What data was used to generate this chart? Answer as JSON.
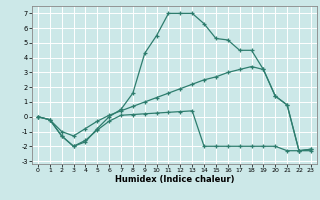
{
  "xlabel": "Humidex (Indice chaleur)",
  "xlim": [
    -0.5,
    23.5
  ],
  "ylim": [
    -3.2,
    7.5
  ],
  "xticks": [
    0,
    1,
    2,
    3,
    4,
    5,
    6,
    7,
    8,
    9,
    10,
    11,
    12,
    13,
    14,
    15,
    16,
    17,
    18,
    19,
    20,
    21,
    22,
    23
  ],
  "yticks": [
    -3,
    -2,
    -1,
    0,
    1,
    2,
    3,
    4,
    5,
    6,
    7
  ],
  "bg_color": "#cce8e8",
  "grid_color": "#ffffff",
  "line_color": "#2e7d6e",
  "line1_x": [
    0,
    1,
    2,
    3,
    4,
    5,
    6,
    7,
    8,
    9,
    10,
    11,
    12,
    13,
    14,
    15,
    16,
    17,
    18,
    19,
    20,
    21,
    22,
    23
  ],
  "line1_y": [
    0,
    -0.2,
    -1.3,
    -2.0,
    -1.7,
    -0.8,
    0.0,
    0.5,
    1.6,
    4.3,
    5.5,
    7.0,
    7.0,
    7.0,
    6.3,
    5.3,
    5.2,
    4.5,
    4.5,
    3.2,
    1.4,
    0.8,
    -2.3,
    -2.2
  ],
  "line2_x": [
    0,
    1,
    2,
    3,
    4,
    5,
    6,
    7,
    8,
    9,
    10,
    11,
    12,
    13,
    14,
    15,
    16,
    17,
    18,
    19,
    20,
    21,
    22,
    23
  ],
  "line2_y": [
    0,
    -0.2,
    -1.3,
    -2.0,
    -1.6,
    -0.9,
    -0.3,
    0.1,
    0.15,
    0.2,
    0.25,
    0.3,
    0.35,
    0.4,
    -2.0,
    -2.0,
    -2.0,
    -2.0,
    -2.0,
    -2.0,
    -2.0,
    -2.3,
    -2.3,
    -2.3
  ],
  "line3_x": [
    0,
    1,
    2,
    3,
    4,
    5,
    6,
    7,
    8,
    9,
    10,
    11,
    12,
    13,
    14,
    15,
    16,
    17,
    18,
    19,
    20,
    21,
    22,
    23
  ],
  "line3_y": [
    0,
    -0.2,
    -1.0,
    -1.3,
    -0.8,
    -0.3,
    0.1,
    0.4,
    0.7,
    1.0,
    1.3,
    1.6,
    1.9,
    2.2,
    2.5,
    2.7,
    3.0,
    3.2,
    3.4,
    3.2,
    1.4,
    0.8,
    -2.3,
    -2.2
  ]
}
